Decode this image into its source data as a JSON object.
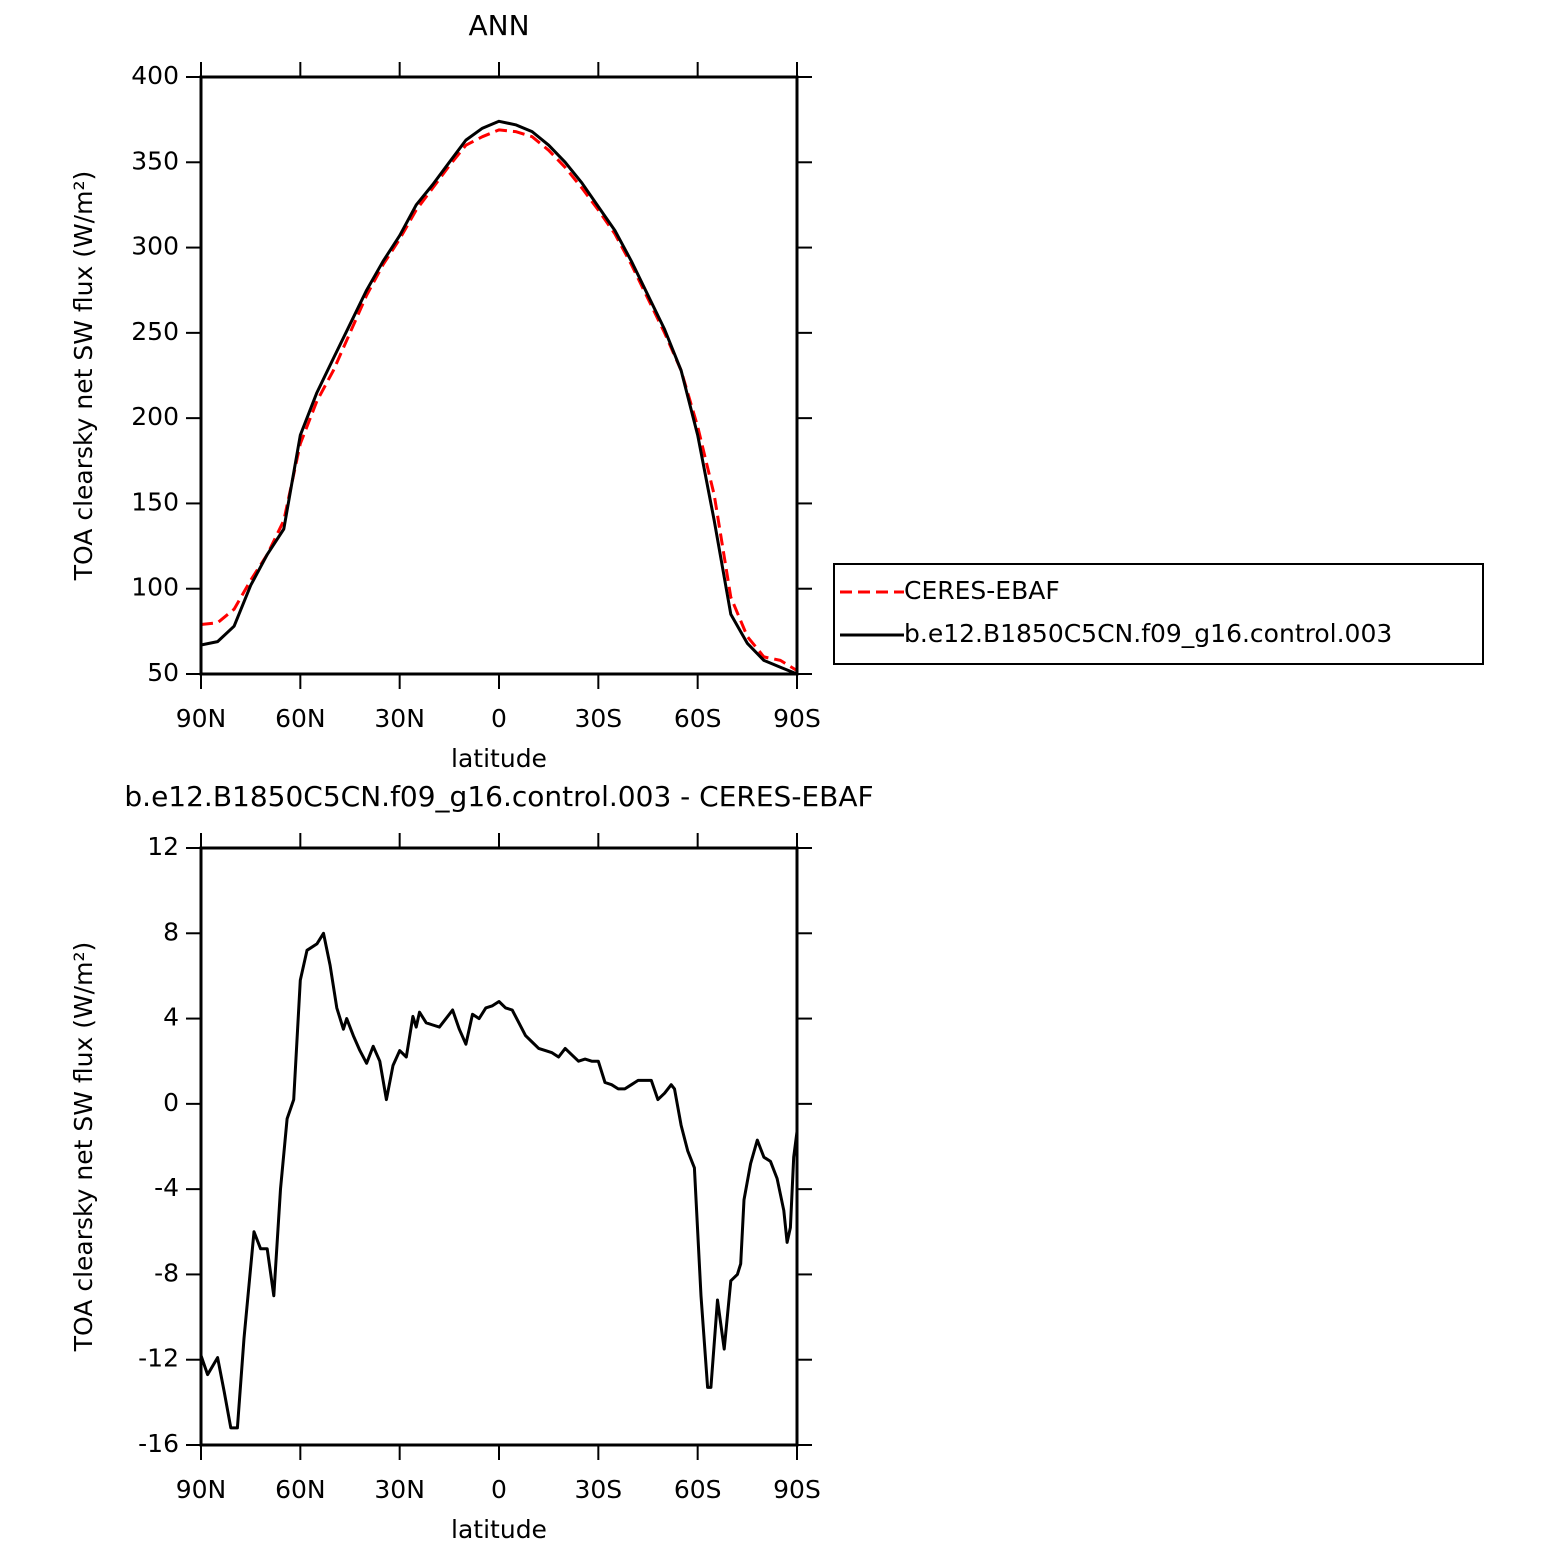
{
  "chart_data": [
    {
      "type": "line",
      "title": "ANN",
      "xlabel": "latitude",
      "ylabel": "TOA clearsky net SW flux (W/m²)",
      "x": [
        90,
        85,
        80,
        75,
        70,
        65,
        60,
        55,
        50,
        45,
        40,
        35,
        30,
        25,
        20,
        15,
        10,
        5,
        0,
        -5,
        -10,
        -15,
        -20,
        -25,
        -30,
        -35,
        -40,
        -45,
        -50,
        -55,
        -60,
        -65,
        -70,
        -75,
        -80,
        -85,
        -90
      ],
      "series": [
        {
          "name": "CERES-EBAF",
          "color": "#ff0000",
          "dashed": true,
          "values": [
            79,
            80,
            88,
            105,
            120,
            140,
            185,
            210,
            228,
            250,
            272,
            290,
            305,
            322,
            335,
            348,
            360,
            365,
            369,
            368,
            365,
            357,
            347,
            335,
            322,
            308,
            290,
            270,
            250,
            228,
            195,
            155,
            95,
            72,
            60,
            58,
            52
          ]
        },
        {
          "name": "b.e12.B1850C5CN.f09_g16.control.003",
          "color": "#000000",
          "dashed": false,
          "values": [
            67,
            69,
            78,
            102,
            120,
            135,
            190,
            215,
            235,
            255,
            275,
            292,
            307,
            325,
            337,
            350,
            363,
            370,
            374,
            372,
            368,
            360,
            350,
            338,
            324,
            310,
            292,
            272,
            252,
            228,
            190,
            140,
            85,
            68,
            58,
            54,
            50
          ]
        }
      ],
      "xlim": [
        90,
        -90
      ],
      "xticks": [
        {
          "value": 90,
          "label": "90N"
        },
        {
          "value": 60,
          "label": "60N"
        },
        {
          "value": 30,
          "label": "30N"
        },
        0,
        {
          "value": -30,
          "label": "30S"
        },
        {
          "value": -60,
          "label": "60S"
        },
        {
          "value": -90,
          "label": "90S"
        }
      ],
      "ylim": [
        50,
        400
      ],
      "yticks": [
        50,
        100,
        150,
        200,
        250,
        300,
        350,
        400
      ],
      "legend": "outside right"
    },
    {
      "type": "line",
      "title": "b.e12.B1850C5CN.f09_g16.control.003 - CERES-EBAF",
      "xlabel": "latitude",
      "ylabel": "TOA clearsky net SW flux (W/m²)",
      "x": [
        90,
        88,
        85,
        83,
        81,
        79,
        77,
        74,
        72,
        70,
        68,
        66,
        64,
        62,
        60,
        58,
        57,
        55,
        53,
        51,
        49,
        47,
        46,
        44,
        42,
        40,
        38,
        36,
        34,
        32,
        30,
        28,
        26,
        25,
        24,
        22,
        20,
        18,
        16,
        14,
        12,
        10,
        8,
        6,
        4,
        2,
        0,
        -2,
        -4,
        -6,
        -8,
        -10,
        -12,
        -14,
        -16,
        -18,
        -20,
        -22,
        -24,
        -26,
        -28,
        -30,
        -32,
        -34,
        -36,
        -38,
        -40,
        -42,
        -44,
        -46,
        -48,
        -50,
        -52,
        -53,
        -55,
        -57,
        -59,
        -61,
        -63,
        -64,
        -66,
        -68,
        -70,
        -72,
        -73,
        -74,
        -76,
        -78,
        -80,
        -82,
        -84,
        -86,
        -87,
        -88,
        -89,
        -90
      ],
      "values": [
        -11.8,
        -12.7,
        -11.9,
        -13.5,
        -15.2,
        -15.2,
        -11,
        -6,
        -6.8,
        -6.8,
        -9,
        -4,
        -0.7,
        0.2,
        5.8,
        7.2,
        7.3,
        7.5,
        8.0,
        6.5,
        4.5,
        3.5,
        4.0,
        3.2,
        2.5,
        1.9,
        2.7,
        2.0,
        0.2,
        1.8,
        2.5,
        2.2,
        4.1,
        3.6,
        4.3,
        3.8,
        3.7,
        3.6,
        4.0,
        4.4,
        3.5,
        2.8,
        4.2,
        4.0,
        4.5,
        4.6,
        4.8,
        4.5,
        4.4,
        3.8,
        3.2,
        2.9,
        2.6,
        2.5,
        2.4,
        2.2,
        2.6,
        2.3,
        2.0,
        2.1,
        2.0,
        2.0,
        1.0,
        0.9,
        0.7,
        0.7,
        0.9,
        1.1,
        1.1,
        1.1,
        0.2,
        0.5,
        0.9,
        0.7,
        -1.0,
        -2.2,
        -3.0,
        -9,
        -13.3,
        -13.3,
        -9.2,
        -11.5,
        -8.3,
        -8,
        -7.5,
        -4.5,
        -2.8,
        -1.7,
        -2.5,
        -2.7,
        -3.5,
        -5.0,
        -6.5,
        -5.8,
        -2.5,
        -1.3
      ],
      "color": "#000000",
      "xlim": [
        90,
        -90
      ],
      "xticks": [
        {
          "value": 90,
          "label": "90N"
        },
        {
          "value": 60,
          "label": "60N"
        },
        {
          "value": 30,
          "label": "30N"
        },
        0,
        {
          "value": -30,
          "label": "30S"
        },
        {
          "value": -60,
          "label": "60S"
        },
        {
          "value": -90,
          "label": "90S"
        }
      ],
      "ylim": [
        -16,
        12
      ],
      "yticks": [
        -16,
        -12,
        -8,
        -4,
        0,
        4,
        8,
        12
      ]
    }
  ]
}
